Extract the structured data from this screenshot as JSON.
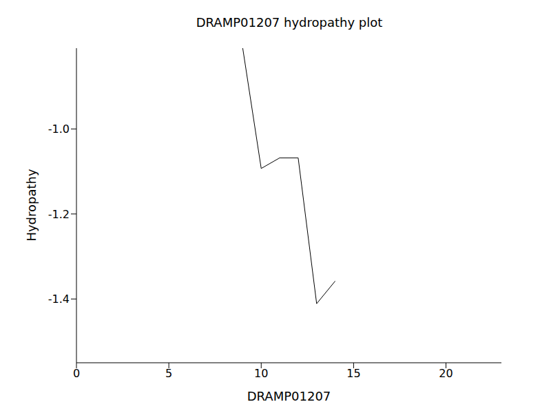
{
  "chart_data": {
    "type": "line",
    "title": "DRAMP01207 hydropathy plot",
    "x_label": "DRAMP01207",
    "y_label": "Hydropathy",
    "x": [
      9,
      10,
      11,
      12,
      13,
      14
    ],
    "values": [
      -0.81,
      -1.093,
      -1.068,
      -1.068,
      -1.411,
      -1.358
    ],
    "color": "#000000",
    "xlim": [
      0,
      23
    ],
    "xticks": [
      0,
      5,
      10,
      15,
      20
    ],
    "ylim": [
      -1.55,
      -0.81
    ],
    "yticks": [
      -1.4,
      -1.2,
      {
        "value": -1,
        "label": "-1.0"
      }
    ],
    "grid": false
  }
}
